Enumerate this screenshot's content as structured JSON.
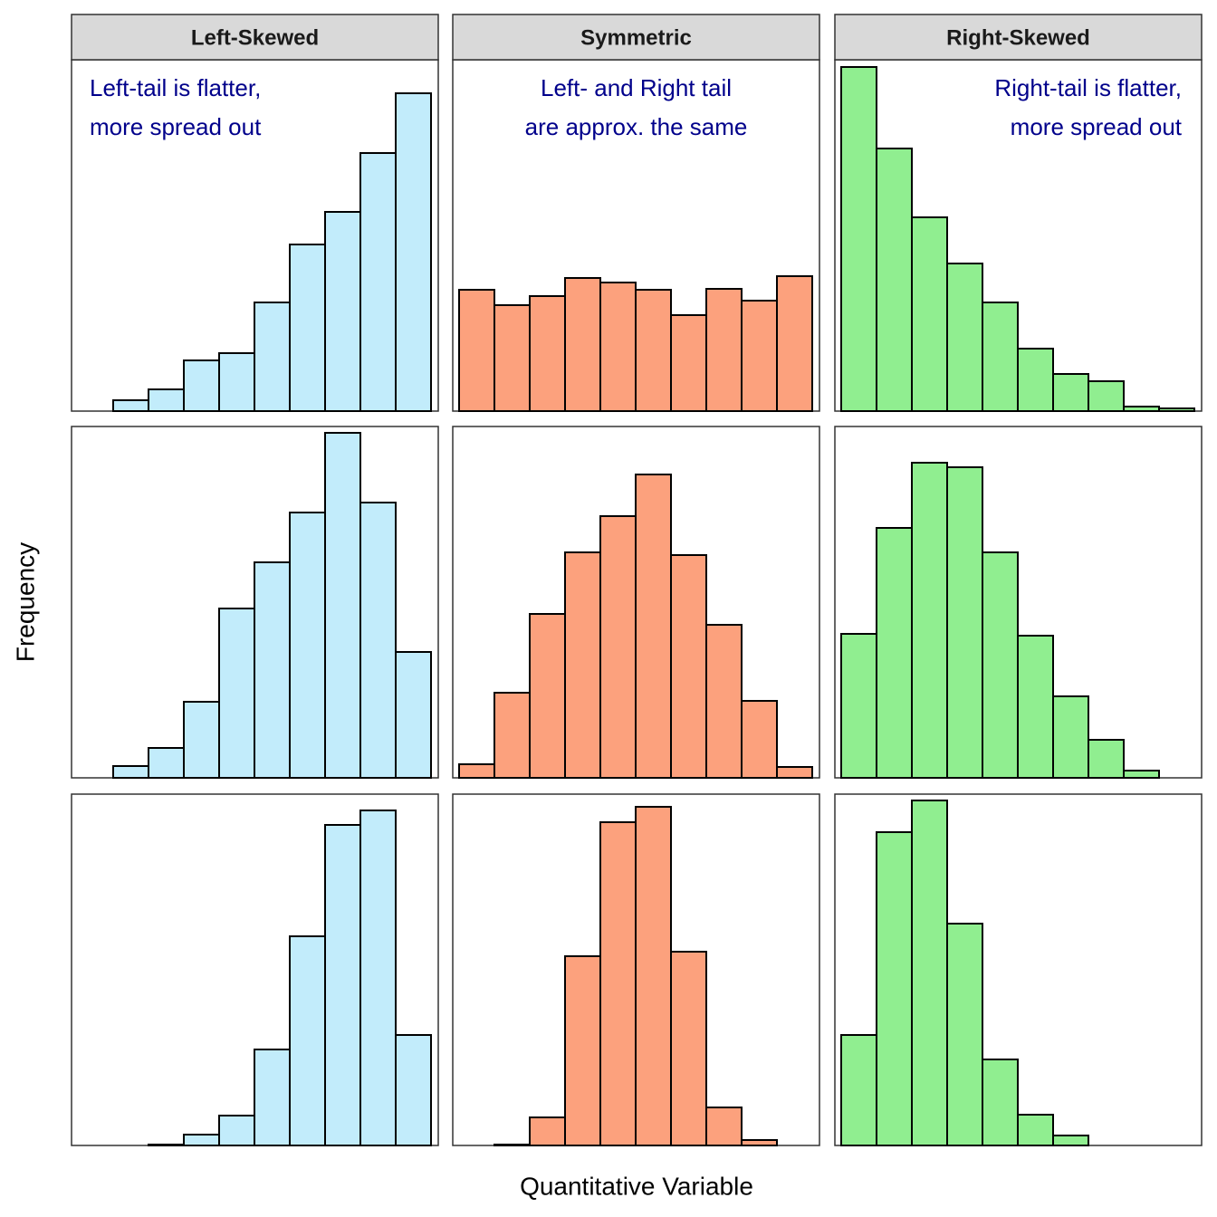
{
  "xlabel": "Quantitative Variable",
  "ylabel": "Frequency",
  "chart_data": [
    {
      "type": "bar",
      "title": "Left-Skewed",
      "annotation": [
        "Left-tail is flatter,",
        "more spread out"
      ],
      "color": "#c2ecfb",
      "values": [
        0,
        12,
        24,
        56,
        64,
        120,
        184,
        220,
        285,
        351
      ],
      "ylim": [
        0,
        388
      ]
    },
    {
      "type": "bar",
      "title": "Symmetric",
      "annotation": [
        "Left- and Right tail",
        "are approx. the same"
      ],
      "color": "#fca17d",
      "values": [
        134,
        117,
        127,
        147,
        142,
        134,
        106,
        135,
        122,
        149
      ],
      "ylim": [
        0,
        388
      ]
    },
    {
      "type": "bar",
      "title": "Right-Skewed",
      "annotation": [
        "Right-tail is flatter,",
        "more spread out"
      ],
      "color": "#90ee90",
      "values": [
        380,
        290,
        214,
        163,
        120,
        69,
        41,
        33,
        5,
        3
      ],
      "ylim": [
        0,
        388
      ]
    },
    {
      "type": "bar",
      "color": "#c2ecfb",
      "values": [
        0,
        13,
        33,
        84,
        187,
        238,
        293,
        381,
        304,
        139
      ],
      "ylim": [
        0,
        388
      ]
    },
    {
      "type": "bar",
      "color": "#fca17d",
      "values": [
        15,
        94,
        181,
        249,
        289,
        335,
        246,
        169,
        85,
        12
      ],
      "ylim": [
        0,
        388
      ]
    },
    {
      "type": "bar",
      "color": "#90ee90",
      "values": [
        159,
        276,
        348,
        343,
        249,
        157,
        90,
        42,
        8,
        0
      ],
      "ylim": [
        0,
        388
      ]
    },
    {
      "type": "bar",
      "color": "#c2ecfb",
      "values": [
        0,
        0,
        1,
        12,
        33,
        106,
        231,
        354,
        370,
        122
      ],
      "ylim": [
        0,
        388
      ]
    },
    {
      "type": "bar",
      "color": "#fca17d",
      "values": [
        0,
        1,
        31,
        209,
        357,
        374,
        214,
        42,
        6,
        0
      ],
      "ylim": [
        0,
        388
      ]
    },
    {
      "type": "bar",
      "color": "#90ee90",
      "values": [
        122,
        346,
        381,
        245,
        95,
        34,
        11,
        0,
        0,
        0
      ],
      "ylim": [
        0,
        388
      ]
    }
  ]
}
